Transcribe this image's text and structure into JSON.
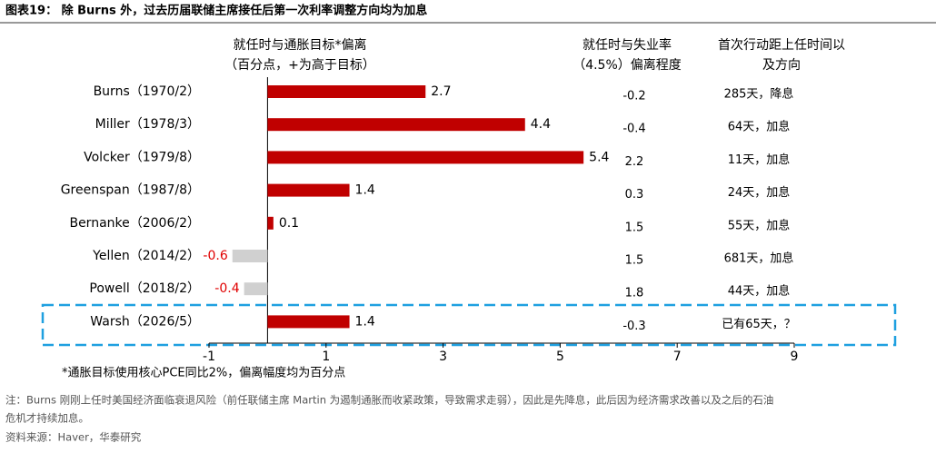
{
  "chart_data": {
    "type": "bar",
    "orientation": "horizontal",
    "title": "图表19： 除 Burns 外，过去历届联储主席接任后第一次利率调整方向均为加息",
    "value_header": [
      "就任时与通胀目标*偏离",
      "（百分点，+为高于目标）"
    ],
    "gap_header": [
      "就任时与失业率",
      "（4.5%）偏离程度"
    ],
    "move_header": [
      "首次行动距上任时间以",
      "及方向"
    ],
    "categories": [
      "Burns（1970/2）",
      "Miller（1978/3）",
      "Volcker（1979/8）",
      "Greenspan（1987/8）",
      "Bernanke（2006/2）",
      "Yellen（2014/2）",
      "Powell（2018/2）",
      "Warsh（2026/5）"
    ],
    "values": [
      2.7,
      4.4,
      5.4,
      1.4,
      0.1,
      -0.6,
      -0.4,
      1.4
    ],
    "color": "#c00000",
    "negative_color": "#d0d0d0",
    "negative_label_color": "#e00000",
    "unemployment_gap": [
      -0.2,
      -0.4,
      2.2,
      0.3,
      1.5,
      1.5,
      1.8,
      -0.3
    ],
    "first_move": [
      "285天，降息",
      "64天，加息",
      "11天，加息",
      "24天，加息",
      "55天，加息",
      "681天，加息",
      "44天，加息",
      "已有65天，？"
    ],
    "xlim": [
      -1,
      9
    ],
    "xticks": [
      -1,
      1,
      3,
      5,
      7,
      9
    ],
    "footnote": "*通胀目标使用核心PCE同比2%，偏离幅度均为百分点",
    "note": [
      "注：Burns 刚刚上任时美国经济面临衰退风险（前任联储主席 Martin 为遏制通胀而收紧政策，导致需求走弱），因此是先降息，此后因为经济需求改善以及之后的石油",
      "危机才持续加息。"
    ],
    "source": "资料来源：Haver，华泰研究"
  }
}
